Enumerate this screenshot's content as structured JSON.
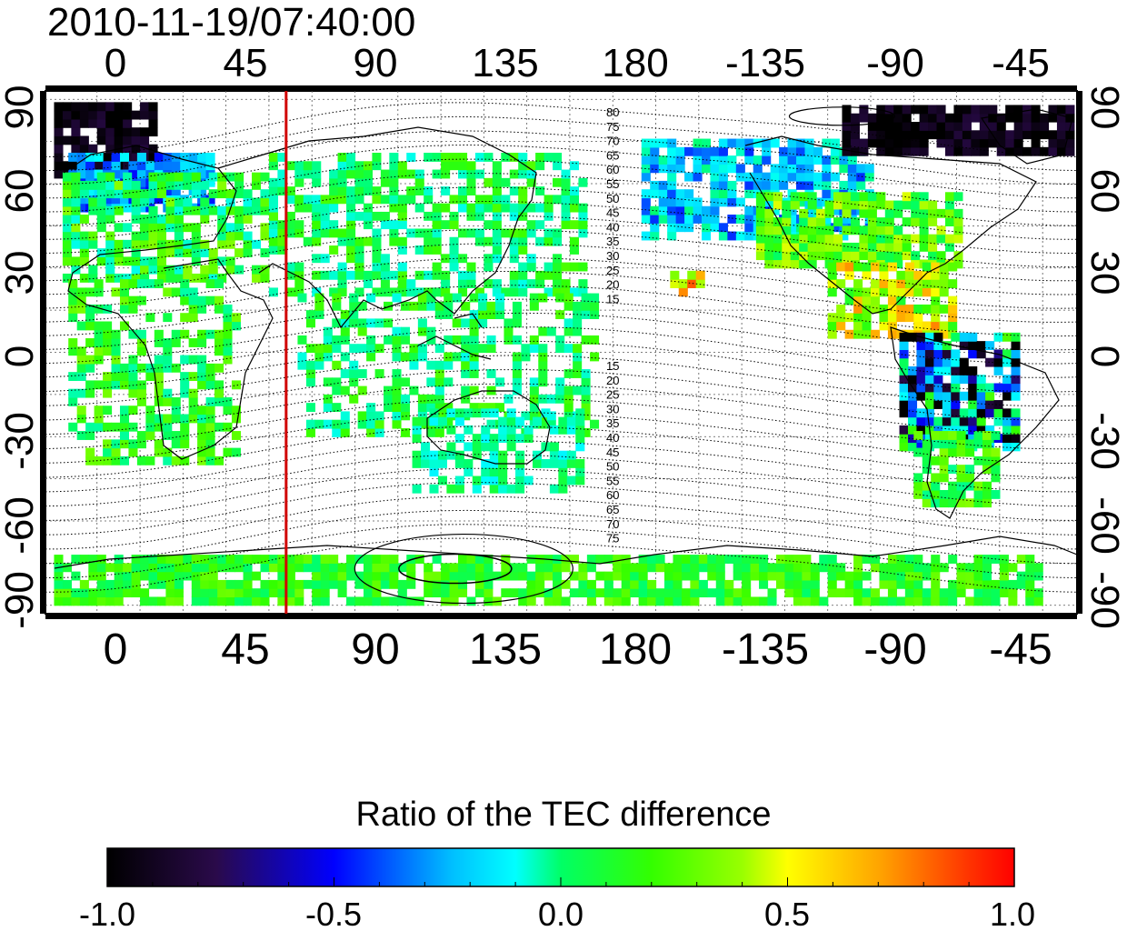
{
  "timestamp": "2010-11-19/07:40:00",
  "map": {
    "top_lon_ticks": [
      "0",
      "45",
      "90",
      "135",
      "180",
      "-135",
      "-90",
      "-45"
    ],
    "bottom_lon_ticks": [
      "0",
      "45",
      "90",
      "135",
      "180",
      "-135",
      "-90",
      "-45"
    ],
    "left_lat_ticks": [
      "90",
      "60",
      "30",
      "0",
      "-30",
      "-60",
      "-90"
    ],
    "right_lat_ticks": [
      "90",
      "60",
      "30",
      "0",
      "-30",
      "-60",
      "-90"
    ],
    "lon_range": [
      -18,
      342
    ],
    "lat_range": [
      -93,
      93
    ],
    "meridian_marker_lon": 66,
    "meridian_marker_color": "#d00000",
    "contour_labels_north": [
      "80",
      "75",
      "70",
      "65",
      "60",
      "55",
      "50",
      "45",
      "40",
      "35",
      "30",
      "25",
      "20",
      "15"
    ],
    "contour_labels_south": [
      "15",
      "20",
      "25",
      "30",
      "35",
      "40",
      "45",
      "50",
      "55",
      "60",
      "65",
      "70",
      "75"
    ]
  },
  "colorbar": {
    "title": "Ratio of the TEC difference",
    "tick_labels": [
      "-1.0",
      "-0.5",
      "0.0",
      "0.5",
      "1.0"
    ],
    "range": [
      -1.0,
      1.0
    ],
    "colors": [
      "#000000",
      "#2a0a4a",
      "#0000ff",
      "#00bfff",
      "#00ffff",
      "#00ff66",
      "#33ff00",
      "#99ff00",
      "#ffff00",
      "#ffa500",
      "#ff3300",
      "#ff0000"
    ]
  }
}
